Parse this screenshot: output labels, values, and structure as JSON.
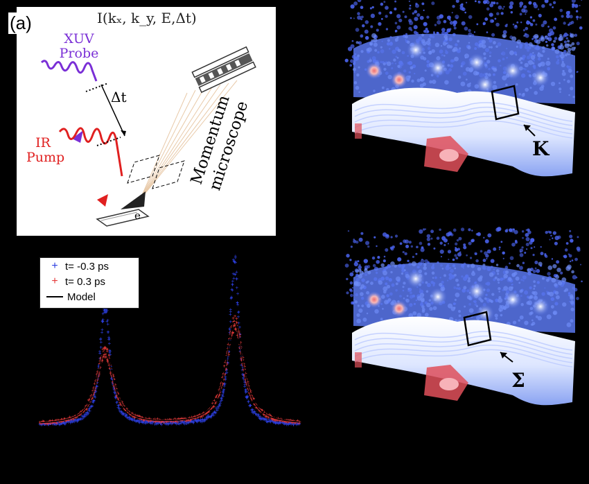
{
  "panel_a": {
    "label": "(a)",
    "formula": "I(kₓ, k_y, E,Δt)",
    "xuv_line1": "XUV",
    "xuv_line2": "Probe",
    "delay": "Δt",
    "ir_line1": "IR",
    "ir_line2": "Pump",
    "electron": "e",
    "microscope_line1": "Momentum",
    "microscope_line2": "microscope"
  },
  "legend": {
    "items": [
      {
        "symbol": "+",
        "label": "t= -0.3 ps",
        "color": "#2c3fe0"
      },
      {
        "symbol": "+",
        "label": "t=  0.3 ps",
        "color": "#e53a3a"
      },
      {
        "symbol": "line",
        "label": "Model",
        "color": "#000000"
      }
    ]
  },
  "chart_data": {
    "type": "line",
    "series": [
      {
        "name": "t= -0.3 ps",
        "color": "#2c3fe0",
        "peaks": [
          {
            "x": 0.25,
            "height": 0.76
          },
          {
            "x": 0.75,
            "height": 1.0
          }
        ],
        "width": 0.022
      },
      {
        "name": "t=  0.3 ps",
        "color": "#e53a3a",
        "peaks": [
          {
            "x": 0.25,
            "height": 0.45
          },
          {
            "x": 0.75,
            "height": 0.63
          }
        ],
        "width": 0.04
      },
      {
        "name": "Model",
        "color": "#000000",
        "peaks": [
          {
            "x": 0.25,
            "height": 0.45
          },
          {
            "x": 0.75,
            "height": 0.63
          }
        ],
        "width": 0.04
      }
    ],
    "xlim": [
      0,
      1
    ],
    "ylim": [
      0,
      1.05
    ],
    "grid": false
  },
  "panels_right": [
    {
      "annotation": "K"
    },
    {
      "annotation": "Σ"
    }
  ],
  "colors": {
    "probe": "#7a2fd6",
    "pump": "#e02020",
    "heat_low": "#3a55e8",
    "heat_high": "#e04848"
  }
}
